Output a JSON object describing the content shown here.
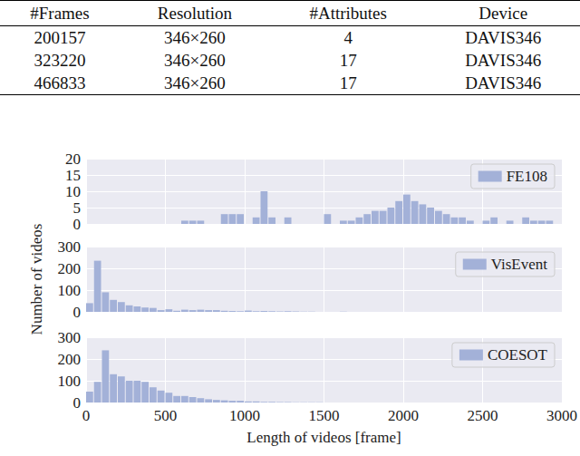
{
  "table": {
    "columns": [
      "#Frames",
      "Resolution",
      "#Attributes",
      "Device"
    ],
    "rows": [
      [
        "200157",
        "346×260",
        "4",
        "DAVIS346"
      ],
      [
        "323220",
        "346×260",
        "17",
        "DAVIS346"
      ],
      [
        "466833",
        "346×260",
        "17",
        "DAVIS346"
      ]
    ]
  },
  "chart_data": [
    {
      "type": "histogram",
      "bins": [
        0,
        50,
        100,
        150,
        200,
        250,
        300,
        350,
        400,
        450,
        500,
        550,
        600,
        650,
        700,
        750,
        800,
        850,
        900,
        950,
        1000,
        1050,
        1100,
        1150,
        1200,
        1250,
        1300,
        1350,
        1400,
        1450,
        1500,
        1550,
        1600,
        1650,
        1700,
        1750,
        1800,
        1850,
        1900,
        1950,
        2000,
        2050,
        2100,
        2150,
        2200,
        2250,
        2300,
        2350,
        2400,
        2450,
        2500,
        2550,
        2600,
        2650,
        2700,
        2750,
        2800,
        2850,
        2900,
        2950,
        3000
      ],
      "series": [
        {
          "name": "FE108",
          "color": "#a3b1d8",
          "values": [
            0,
            0,
            0,
            0,
            0,
            0,
            0,
            0,
            0,
            0,
            0,
            0,
            1,
            1,
            1,
            0,
            0,
            3,
            3,
            3,
            0,
            2,
            10,
            2,
            0,
            2,
            0,
            0,
            0,
            0,
            3,
            0,
            1,
            1,
            2,
            3,
            4,
            4,
            5,
            7,
            9,
            7,
            6,
            5,
            4,
            3,
            2,
            2,
            1,
            0,
            1,
            2,
            0,
            1,
            0,
            2,
            1,
            1,
            1,
            0
          ]
        }
      ],
      "xlim": [
        0,
        3000
      ],
      "xticks": [
        0,
        500,
        1000,
        1500,
        2000,
        2500,
        3000
      ],
      "ylim": [
        0,
        20
      ],
      "yticks": [
        0,
        5,
        10,
        15,
        20
      ],
      "grid": true,
      "legend": "upper right",
      "tick_labels": "y"
    },
    {
      "type": "histogram",
      "bins": [
        0,
        50,
        100,
        150,
        200,
        250,
        300,
        350,
        400,
        450,
        500,
        550,
        600,
        650,
        700,
        750,
        800,
        850,
        900,
        950,
        1000,
        1050,
        1100,
        1150,
        1200,
        1250,
        1300,
        1350,
        1400,
        1450,
        1500,
        1550,
        1600,
        1650,
        1700,
        1750,
        1800,
        1850,
        1900,
        1950,
        2000,
        2050,
        2100,
        2150,
        2200,
        2250,
        2300,
        2350,
        2400,
        2450,
        2500,
        2550,
        2600,
        2650,
        2700,
        2750,
        2800,
        2850,
        2900,
        2950,
        3000
      ],
      "series": [
        {
          "name": "VisEvent",
          "color": "#a3b1d8",
          "values": [
            40,
            235,
            90,
            55,
            45,
            30,
            25,
            20,
            18,
            8,
            12,
            5,
            10,
            8,
            10,
            8,
            8,
            5,
            4,
            3,
            6,
            3,
            4,
            3,
            2,
            3,
            2,
            1,
            1,
            0,
            0,
            0,
            1,
            0,
            0,
            0,
            0,
            0,
            0,
            0,
            0,
            0,
            0,
            0,
            0,
            0,
            0,
            0,
            0,
            0,
            0,
            0,
            0,
            0,
            0,
            0,
            0,
            0,
            0,
            0
          ]
        }
      ],
      "xlim": [
        0,
        3000
      ],
      "xticks": [
        0,
        500,
        1000,
        1500,
        2000,
        2500,
        3000
      ],
      "ylim": [
        0,
        300
      ],
      "yticks": [
        0,
        100,
        200,
        300
      ],
      "ylabel": "Number of videos",
      "grid": true,
      "legend": "upper right",
      "tick_labels": "y"
    },
    {
      "type": "histogram",
      "bins": [
        0,
        50,
        100,
        150,
        200,
        250,
        300,
        350,
        400,
        450,
        500,
        550,
        600,
        650,
        700,
        750,
        800,
        850,
        900,
        950,
        1000,
        1050,
        1100,
        1150,
        1200,
        1250,
        1300,
        1350,
        1400,
        1450,
        1500,
        1550,
        1600,
        1650,
        1700,
        1750,
        1800,
        1850,
        1900,
        1950,
        2000,
        2050,
        2100,
        2150,
        2200,
        2250,
        2300,
        2350,
        2400,
        2450,
        2500,
        2550,
        2600,
        2650,
        2700,
        2750,
        2800,
        2850,
        2900,
        2950,
        3000
      ],
      "series": [
        {
          "name": "COESOT",
          "color": "#a3b1d8",
          "values": [
            50,
            95,
            240,
            130,
            120,
            100,
            100,
            95,
            70,
            55,
            45,
            30,
            30,
            25,
            20,
            15,
            12,
            10,
            8,
            8,
            5,
            5,
            3,
            3,
            2,
            2,
            1,
            1,
            1,
            1,
            0,
            0,
            0,
            0,
            0,
            0,
            0,
            0,
            0,
            0,
            0,
            0,
            0,
            0,
            0,
            0,
            0,
            0,
            0,
            0,
            0,
            0,
            0,
            0,
            0,
            0,
            0,
            0,
            0,
            0
          ]
        }
      ],
      "xlim": [
        0,
        3000
      ],
      "xticks": [
        0,
        500,
        1000,
        1500,
        2000,
        2500,
        3000
      ],
      "ylim": [
        0,
        300
      ],
      "yticks": [
        0,
        100,
        200,
        300
      ],
      "xlabel": "Length of videos [frame]",
      "grid": true,
      "legend": "upper right"
    }
  ]
}
